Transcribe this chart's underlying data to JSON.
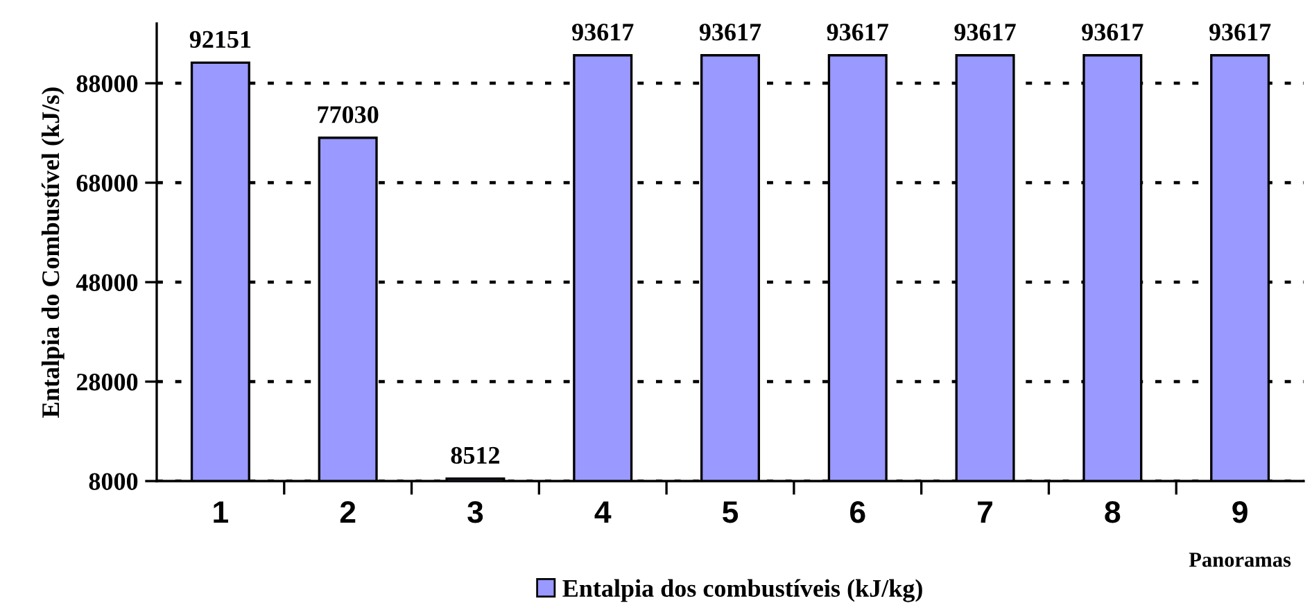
{
  "chart_data": {
    "type": "bar",
    "ylabel": "Entalpia do Combustível (kJ/s)",
    "xlabel": "Panoramas",
    "categories": [
      "1",
      "2",
      "3",
      "4",
      "5",
      "6",
      "7",
      "8",
      "9"
    ],
    "series": [
      {
        "name": "Entalpia dos combustíveis (kJ/kg)",
        "color": "#9999ff",
        "values": [
          92151,
          77030,
          8512,
          93617,
          93617,
          93617,
          93617,
          93617,
          93617
        ]
      }
    ],
    "ylim": [
      8000,
      100000
    ],
    "yticks": [
      8000,
      28000,
      48000,
      68000,
      88000
    ],
    "grid": "y",
    "legend": "bottom",
    "data_labels": true
  }
}
